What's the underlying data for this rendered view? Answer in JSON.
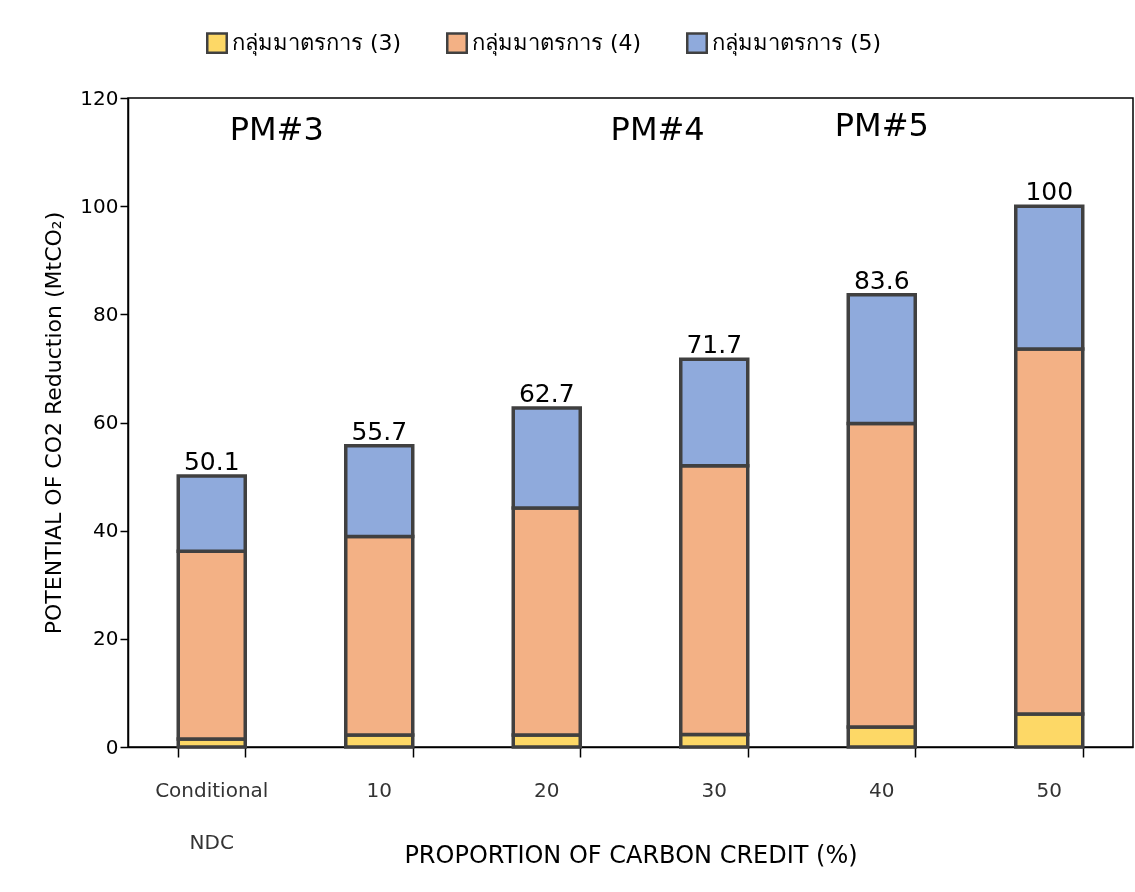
{
  "chart_data": {
    "type": "bar",
    "stacked": true,
    "xlabel": "PROPORTION OF CARBON CREDIT (%)",
    "ylabel": "POTENTIAL OF CO2 Reduction (MtCO₂)",
    "categories": [
      "Conditional NDC",
      "10",
      "20",
      "30",
      "40",
      "50"
    ],
    "series": [
      {
        "name": "กลุ่มมาตรการ (3)",
        "color": "#fdd866",
        "values": [
          1.5,
          2.2,
          2.2,
          2.3,
          3.7,
          6.1
        ]
      },
      {
        "name": "กลุ่มมาตรการ (4)",
        "color": "#f3b185",
        "values": [
          34.7,
          36.7,
          42.0,
          49.7,
          56.1,
          67.5
        ]
      },
      {
        "name": "กลุ่มมาตรการ (5)",
        "color": "#8faadc",
        "values": [
          13.9,
          16.8,
          18.5,
          19.7,
          23.8,
          26.4
        ]
      }
    ],
    "totals": [
      "50.1",
      "55.7",
      "62.7",
      "71.7",
      "83.6",
      "100"
    ],
    "ylim": [
      0,
      120
    ],
    "yticks": [
      0,
      20,
      40,
      60,
      80,
      100,
      120
    ],
    "grid": false,
    "legend": "top",
    "annotations": [
      "PM#3",
      "PM#4",
      "PM#5"
    ]
  }
}
